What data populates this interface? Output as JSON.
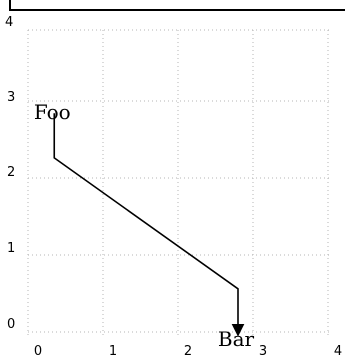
{
  "chart_data": {
    "type": "diagram",
    "x_ticks": [
      "0",
      "1",
      "2",
      "3",
      "4"
    ],
    "y_ticks": [
      "0",
      "1",
      "2",
      "3",
      "4"
    ],
    "top_left_label": "4",
    "grid": true,
    "nodes": [
      {
        "id": "foo",
        "label": "Foo",
        "x": 0.35,
        "y": 2.88
      },
      {
        "id": "bar",
        "label": "Bar",
        "x": 2.8,
        "y": 0.0
      }
    ],
    "edge": {
      "from": "foo",
      "to": "bar",
      "arrow": "end",
      "points": [
        {
          "x": 0.35,
          "y": 2.88
        },
        {
          "x": 0.35,
          "y": 2.3
        },
        {
          "x": 2.8,
          "y": 0.6
        },
        {
          "x": 2.8,
          "y": 0.02
        }
      ]
    }
  }
}
